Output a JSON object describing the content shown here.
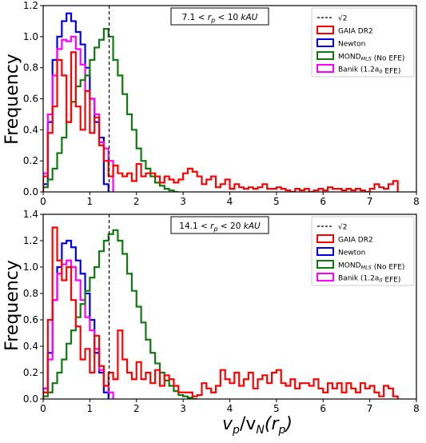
{
  "figure": {
    "ylabel": "Frequency",
    "xlabel_main": "v",
    "xlabel_sub1": "p",
    "xlabel_slash": "/v",
    "xlabel_sub2": "N",
    "xlabel_paren_open": "(r",
    "xlabel_sub3": "p",
    "xlabel_paren_close": ")"
  },
  "colors": {
    "gaia": "#ff0000",
    "newton": "#0000ee",
    "mond": "#0f7a0f",
    "banik": "#ff00ff",
    "sqrt2": "#000000"
  },
  "chart_data": [
    {
      "type": "step",
      "panel": "top",
      "annotation": "7.1 < r_p < 10 kAU",
      "xlim": [
        0,
        8
      ],
      "ylim": [
        0,
        1.2
      ],
      "xticks": [
        "0",
        "1",
        "2",
        "3",
        "4",
        "5",
        "6",
        "7",
        "8"
      ],
      "yticks": [
        "0.0",
        "0.2",
        "0.4",
        "0.6",
        "0.8",
        "1.0",
        "1.2"
      ],
      "vline": 1.414,
      "legend": [
        {
          "key": "sqrt2",
          "label": "√2",
          "style": "dashed"
        },
        {
          "key": "gaia",
          "label": "GAIA DR2"
        },
        {
          "key": "newton",
          "label": "Newton"
        },
        {
          "key": "mond",
          "label": "MOND_MLS (No EFE)"
        },
        {
          "key": "banik",
          "label": "Banik (1.2a_0 EFE)"
        }
      ],
      "series": [
        {
          "key": "newton",
          "name": "Newton",
          "binwidth": 0.1,
          "x0": 0.0,
          "values": [
            0.05,
            0.45,
            0.85,
            1.0,
            1.1,
            1.15,
            1.1,
            1.03,
            0.95,
            0.8,
            0.6,
            0.45,
            0.35,
            0.05
          ]
        },
        {
          "key": "banik",
          "name": "Banik (1.2a_0 EFE)",
          "binwidth": 0.1,
          "x0": 0.0,
          "values": [
            0.12,
            0.5,
            0.75,
            0.92,
            0.98,
            0.97,
            1.0,
            0.92,
            0.82,
            0.65,
            0.6,
            0.5,
            0.32,
            0.28,
            0.2
          ]
        },
        {
          "key": "mond",
          "name": "MOND_MLS (No EFE)",
          "binwidth": 0.1,
          "x0": 0.0,
          "values": [
            0.03,
            0.08,
            0.15,
            0.25,
            0.35,
            0.45,
            0.58,
            0.68,
            0.72,
            0.75,
            0.85,
            0.93,
            0.98,
            1.05,
            1.0,
            0.85,
            0.75,
            0.63,
            0.5,
            0.4,
            0.28,
            0.2,
            0.15,
            0.1,
            0.06,
            0.04,
            0.02,
            0.01,
            0.0
          ]
        },
        {
          "key": "gaia",
          "name": "GAIA DR2",
          "binwidth": 0.1,
          "x0": 0.0,
          "values": [
            0.1,
            0.38,
            0.55,
            0.85,
            0.75,
            0.45,
            0.9,
            0.55,
            0.4,
            0.65,
            0.38,
            0.48,
            0.3,
            0.2,
            0.1,
            0.17,
            0.12,
            0.1,
            0.12,
            0.07,
            0.18,
            0.1,
            0.12,
            0.12,
            0.1,
            0.06,
            0.1,
            0.08,
            0.06,
            0.08,
            0.12,
            0.15,
            0.13,
            0.1,
            0.05,
            0.08,
            0.1,
            0.03,
            0.05,
            0.08,
            0.02,
            0.05,
            0.03,
            0.02,
            0.03,
            0.02,
            0.03,
            0.05,
            0.02,
            0.02,
            0.03,
            0.02,
            0.01,
            0.0,
            0.02,
            0.01,
            0.02,
            0.0,
            0.01,
            0.02,
            0.01,
            0.03,
            0.02,
            0.02,
            0.01,
            0.02,
            0.01,
            0.02,
            0.01,
            0.0,
            0.02,
            0.05,
            0.03,
            0.02,
            0.05,
            0.07
          ]
        }
      ]
    },
    {
      "type": "step",
      "panel": "bottom",
      "annotation": "14.1 < r_p < 20 kAU",
      "xlim": [
        0,
        8
      ],
      "ylim": [
        0,
        1.4
      ],
      "xticks": [
        "0",
        "1",
        "2",
        "3",
        "4",
        "5",
        "6",
        "7",
        "8"
      ],
      "yticks": [
        "0.0",
        "0.2",
        "0.4",
        "0.6",
        "0.8",
        "1.0",
        "1.2",
        "1.4"
      ],
      "vline": 1.414,
      "legend": [
        {
          "key": "sqrt2",
          "label": "√2",
          "style": "dashed"
        },
        {
          "key": "gaia",
          "label": "GAIA DR2"
        },
        {
          "key": "newton",
          "label": "Newton"
        },
        {
          "key": "mond",
          "label": "MOND_MLS (No EFE)"
        },
        {
          "key": "banik",
          "label": "Banik (1.2a_0 EFE)"
        }
      ],
      "series": [
        {
          "key": "newton",
          "name": "Newton",
          "binwidth": 0.1,
          "x0": 0.0,
          "values": [
            0.08,
            0.35,
            0.75,
            1.0,
            1.18,
            1.2,
            1.15,
            1.05,
            0.95,
            0.8,
            0.6,
            0.35,
            0.2,
            0.05
          ]
        },
        {
          "key": "banik",
          "name": "Banik (1.2a_0 EFE)",
          "binwidth": 0.1,
          "x0": 0.0,
          "values": [
            0.08,
            0.3,
            0.75,
            0.95,
            1.02,
            1.05,
            1.0,
            0.9,
            0.75,
            0.62,
            0.52,
            0.38,
            0.22,
            0.1,
            0.05
          ]
        },
        {
          "key": "mond",
          "name": "MOND_MLS (No EFE)",
          "binwidth": 0.1,
          "x0": 0.0,
          "values": [
            0.02,
            0.05,
            0.12,
            0.2,
            0.3,
            0.42,
            0.52,
            0.62,
            0.72,
            0.82,
            0.92,
            1.0,
            1.12,
            1.2,
            1.25,
            1.28,
            1.2,
            1.1,
            0.95,
            0.82,
            0.7,
            0.58,
            0.45,
            0.35,
            0.27,
            0.2,
            0.14,
            0.1,
            0.06,
            0.03,
            0.02,
            0.01,
            0.0
          ]
        },
        {
          "key": "gaia",
          "name": "GAIA DR2",
          "binwidth": 0.1,
          "x0": 0.0,
          "values": [
            0.05,
            0.6,
            1.3,
            1.05,
            0.9,
            1.0,
            0.75,
            0.55,
            0.3,
            0.38,
            0.2,
            0.48,
            0.25,
            0.1,
            0.2,
            0.15,
            0.52,
            0.3,
            0.2,
            0.15,
            0.28,
            0.15,
            0.2,
            0.12,
            0.22,
            0.1,
            0.18,
            0.15,
            0.1,
            0.05,
            0.05,
            0.05,
            0.02,
            0.03,
            0.12,
            0.08,
            0.05,
            0.1,
            0.22,
            0.15,
            0.12,
            0.2,
            0.1,
            0.15,
            0.2,
            0.08,
            0.15,
            0.18,
            0.12,
            0.2,
            0.22,
            0.12,
            0.1,
            0.15,
            0.08,
            0.12,
            0.12,
            0.1,
            0.15,
            0.08,
            0.05,
            0.12,
            0.08,
            0.12,
            0.05,
            0.12,
            0.08,
            0.05,
            0.12,
            0.08,
            0.1,
            0.05,
            0.02,
            0.1,
            0.08,
            0.02
          ]
        }
      ]
    }
  ]
}
